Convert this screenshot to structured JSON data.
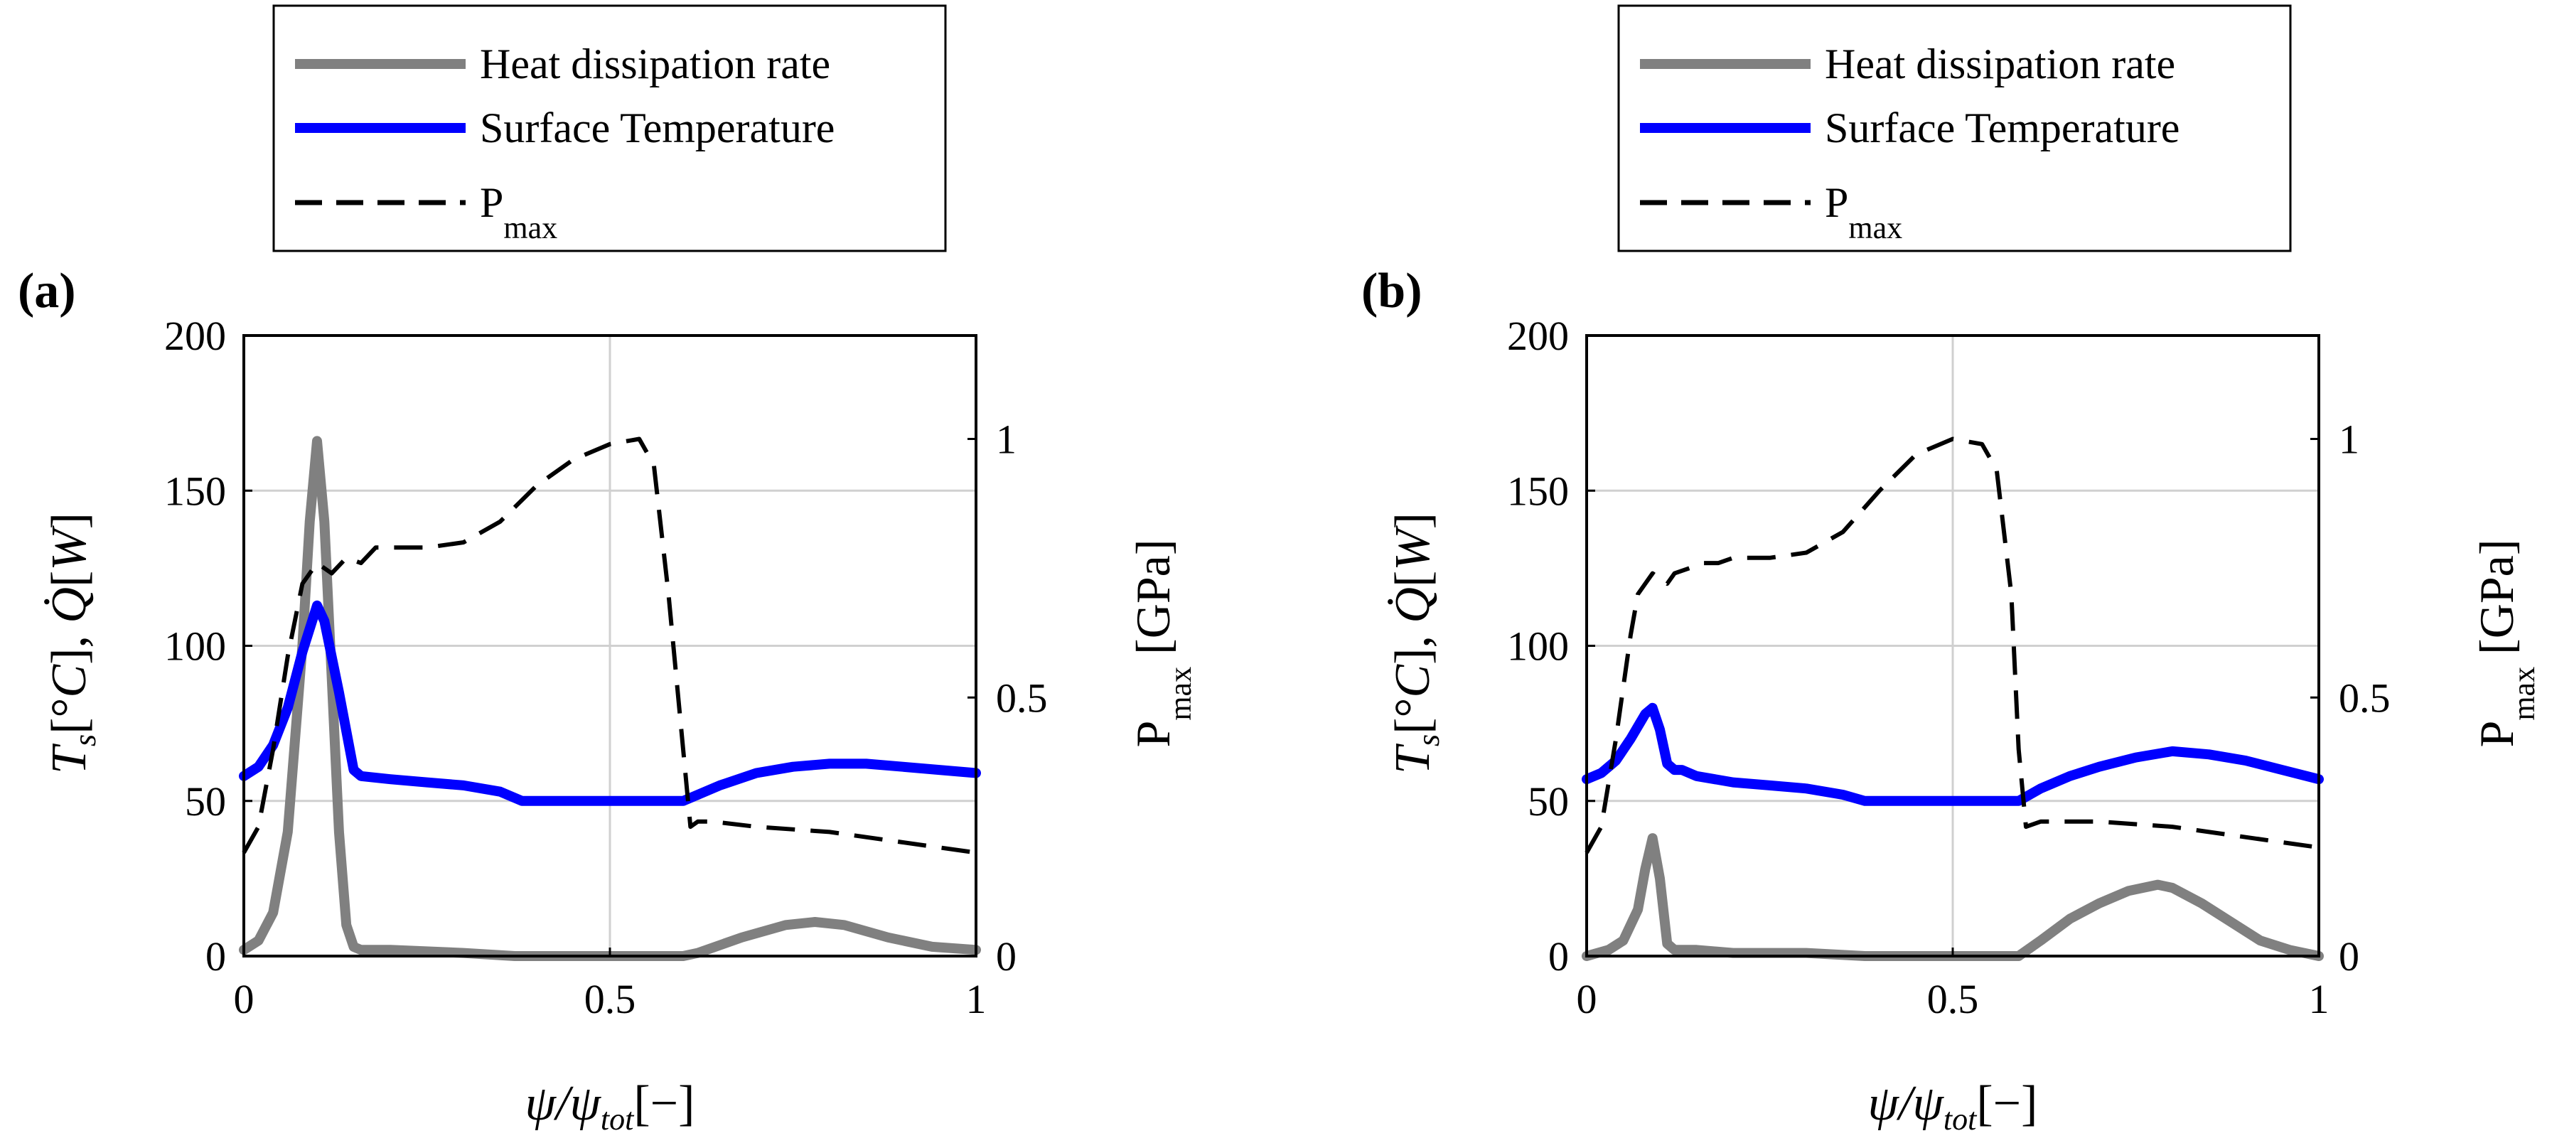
{
  "chart_data": [
    {
      "type": "line",
      "panel_label": "(a)",
      "xlabel": "ψ/ψtot[−]",
      "xlabel_main": "ψ/ψ",
      "xlabel_sub": "tot",
      "xlabel_tail": "[−]",
      "ylabel": "Ts[°C], Q̇[W]",
      "y2label": "Pmax [GPa]",
      "y2label_main": "P",
      "y2label_sub": "max",
      "y2label_tail": " [GPa]",
      "xlim": [
        0,
        1
      ],
      "ylim": [
        0,
        200
      ],
      "y2lim": [
        0,
        1.2
      ],
      "xticks": [
        0,
        0.5,
        1
      ],
      "xtick_labels": [
        "0",
        "0.5",
        "1"
      ],
      "yticks": [
        0,
        50,
        100,
        150,
        200
      ],
      "ytick_labels": [
        "0",
        "50",
        "100",
        "150",
        "200"
      ],
      "y2ticks": [
        0,
        0.5,
        1
      ],
      "y2tick_labels": [
        "0",
        "0.5",
        "1"
      ],
      "grid": true,
      "legend_position": "top",
      "legend": [
        {
          "label": "Heat dissipation rate",
          "style": "solid",
          "color": "#808080"
        },
        {
          "label": "Surface Temperature",
          "style": "solid",
          "color": "#0000ff"
        },
        {
          "label": "P",
          "sub": "max",
          "style": "dashed",
          "color": "#000000"
        }
      ],
      "series": [
        {
          "name": "Heat dissipation rate",
          "axis": "left",
          "color": "#808080",
          "style": "solid",
          "x": [
            0,
            0.02,
            0.04,
            0.06,
            0.08,
            0.09,
            0.1,
            0.11,
            0.12,
            0.13,
            0.14,
            0.15,
            0.16,
            0.2,
            0.3,
            0.37,
            0.45,
            0.55,
            0.6,
            0.62,
            0.68,
            0.74,
            0.78,
            0.82,
            0.88,
            0.94,
            1.0
          ],
          "values": [
            2,
            5,
            14,
            40,
            100,
            140,
            166,
            140,
            90,
            40,
            10,
            3,
            2,
            2,
            1,
            0,
            0,
            0,
            0,
            1,
            6,
            10,
            11,
            10,
            6,
            3,
            2
          ]
        },
        {
          "name": "Surface Temperature",
          "axis": "left",
          "color": "#0000ff",
          "style": "solid",
          "x": [
            0,
            0.02,
            0.04,
            0.06,
            0.08,
            0.1,
            0.11,
            0.13,
            0.15,
            0.16,
            0.2,
            0.25,
            0.3,
            0.35,
            0.38,
            0.4,
            0.5,
            0.6,
            0.65,
            0.7,
            0.75,
            0.8,
            0.85,
            0.9,
            0.95,
            1.0
          ],
          "values": [
            58,
            61,
            68,
            80,
            98,
            113,
            108,
            85,
            60,
            58,
            57,
            56,
            55,
            53,
            50,
            50,
            50,
            50,
            55,
            59,
            61,
            62,
            62,
            61,
            60,
            59
          ]
        },
        {
          "name": "Pmax",
          "axis": "right",
          "color": "#000000",
          "style": "dashed",
          "x": [
            0,
            0.02,
            0.04,
            0.06,
            0.08,
            0.1,
            0.12,
            0.14,
            0.16,
            0.18,
            0.2,
            0.25,
            0.3,
            0.35,
            0.4,
            0.45,
            0.5,
            0.54,
            0.56,
            0.58,
            0.6,
            0.61,
            0.62,
            0.64,
            0.7,
            0.8,
            0.9,
            1.0
          ],
          "values": [
            0.2,
            0.25,
            0.4,
            0.58,
            0.72,
            0.76,
            0.74,
            0.77,
            0.76,
            0.79,
            0.79,
            0.79,
            0.8,
            0.84,
            0.91,
            0.96,
            0.99,
            1.0,
            0.95,
            0.7,
            0.4,
            0.25,
            0.26,
            0.26,
            0.25,
            0.24,
            0.22,
            0.2
          ]
        }
      ]
    },
    {
      "type": "line",
      "panel_label": "(b)",
      "xlabel": "ψ/ψtot[−]",
      "xlabel_main": "ψ/ψ",
      "xlabel_sub": "tot",
      "xlabel_tail": "[−]",
      "ylabel": "Ts[°C], Q̇[W]",
      "y2label": "Pmax [GPa]",
      "y2label_main": "P",
      "y2label_sub": "max",
      "y2label_tail": " [GPa]",
      "xlim": [
        0,
        1
      ],
      "ylim": [
        0,
        200
      ],
      "y2lim": [
        0,
        1.2
      ],
      "xticks": [
        0,
        0.5,
        1
      ],
      "xtick_labels": [
        "0",
        "0.5",
        "1"
      ],
      "yticks": [
        0,
        50,
        100,
        150,
        200
      ],
      "ytick_labels": [
        "0",
        "50",
        "100",
        "150",
        "200"
      ],
      "y2ticks": [
        0,
        0.5,
        1
      ],
      "y2tick_labels": [
        "0",
        "0.5",
        "1"
      ],
      "grid": true,
      "legend_position": "top",
      "legend": [
        {
          "label": "Heat dissipation rate",
          "style": "solid",
          "color": "#808080"
        },
        {
          "label": "Surface Temperature",
          "style": "solid",
          "color": "#0000ff"
        },
        {
          "label": "P",
          "sub": "max",
          "style": "dashed",
          "color": "#000000"
        }
      ],
      "series": [
        {
          "name": "Heat dissipation rate",
          "axis": "left",
          "color": "#808080",
          "style": "solid",
          "x": [
            0,
            0.03,
            0.05,
            0.07,
            0.08,
            0.09,
            0.1,
            0.11,
            0.12,
            0.15,
            0.2,
            0.3,
            0.38,
            0.45,
            0.55,
            0.59,
            0.62,
            0.66,
            0.7,
            0.74,
            0.78,
            0.8,
            0.84,
            0.88,
            0.92,
            0.96,
            1.0
          ],
          "values": [
            0,
            2,
            5,
            15,
            28,
            38,
            25,
            4,
            2,
            2,
            1,
            1,
            0,
            0,
            0,
            0,
            5,
            12,
            17,
            21,
            23,
            22,
            17,
            11,
            5,
            2,
            0
          ]
        },
        {
          "name": "Surface Temperature",
          "axis": "left",
          "color": "#0000ff",
          "style": "solid",
          "x": [
            0,
            0.02,
            0.04,
            0.06,
            0.08,
            0.09,
            0.1,
            0.11,
            0.12,
            0.13,
            0.15,
            0.2,
            0.25,
            0.3,
            0.35,
            0.38,
            0.4,
            0.5,
            0.59,
            0.62,
            0.66,
            0.7,
            0.75,
            0.8,
            0.85,
            0.9,
            0.95,
            1.0
          ],
          "values": [
            57,
            59,
            63,
            70,
            78,
            80,
            73,
            62,
            60,
            60,
            58,
            56,
            55,
            54,
            52,
            50,
            50,
            50,
            50,
            54,
            58,
            61,
            64,
            66,
            65,
            63,
            60,
            57
          ]
        },
        {
          "name": "Pmax",
          "axis": "right",
          "color": "#000000",
          "style": "dashed",
          "x": [
            0,
            0.02,
            0.04,
            0.06,
            0.07,
            0.08,
            0.09,
            0.1,
            0.11,
            0.12,
            0.14,
            0.16,
            0.18,
            0.2,
            0.25,
            0.3,
            0.35,
            0.4,
            0.45,
            0.5,
            0.54,
            0.56,
            0.58,
            0.59,
            0.6,
            0.62,
            0.7,
            0.8,
            0.9,
            1.0
          ],
          "values": [
            0.2,
            0.25,
            0.42,
            0.62,
            0.7,
            0.72,
            0.74,
            0.73,
            0.72,
            0.74,
            0.75,
            0.76,
            0.76,
            0.77,
            0.77,
            0.78,
            0.82,
            0.9,
            0.97,
            1.0,
            0.99,
            0.94,
            0.7,
            0.4,
            0.25,
            0.26,
            0.26,
            0.25,
            0.23,
            0.21
          ]
        }
      ]
    }
  ]
}
